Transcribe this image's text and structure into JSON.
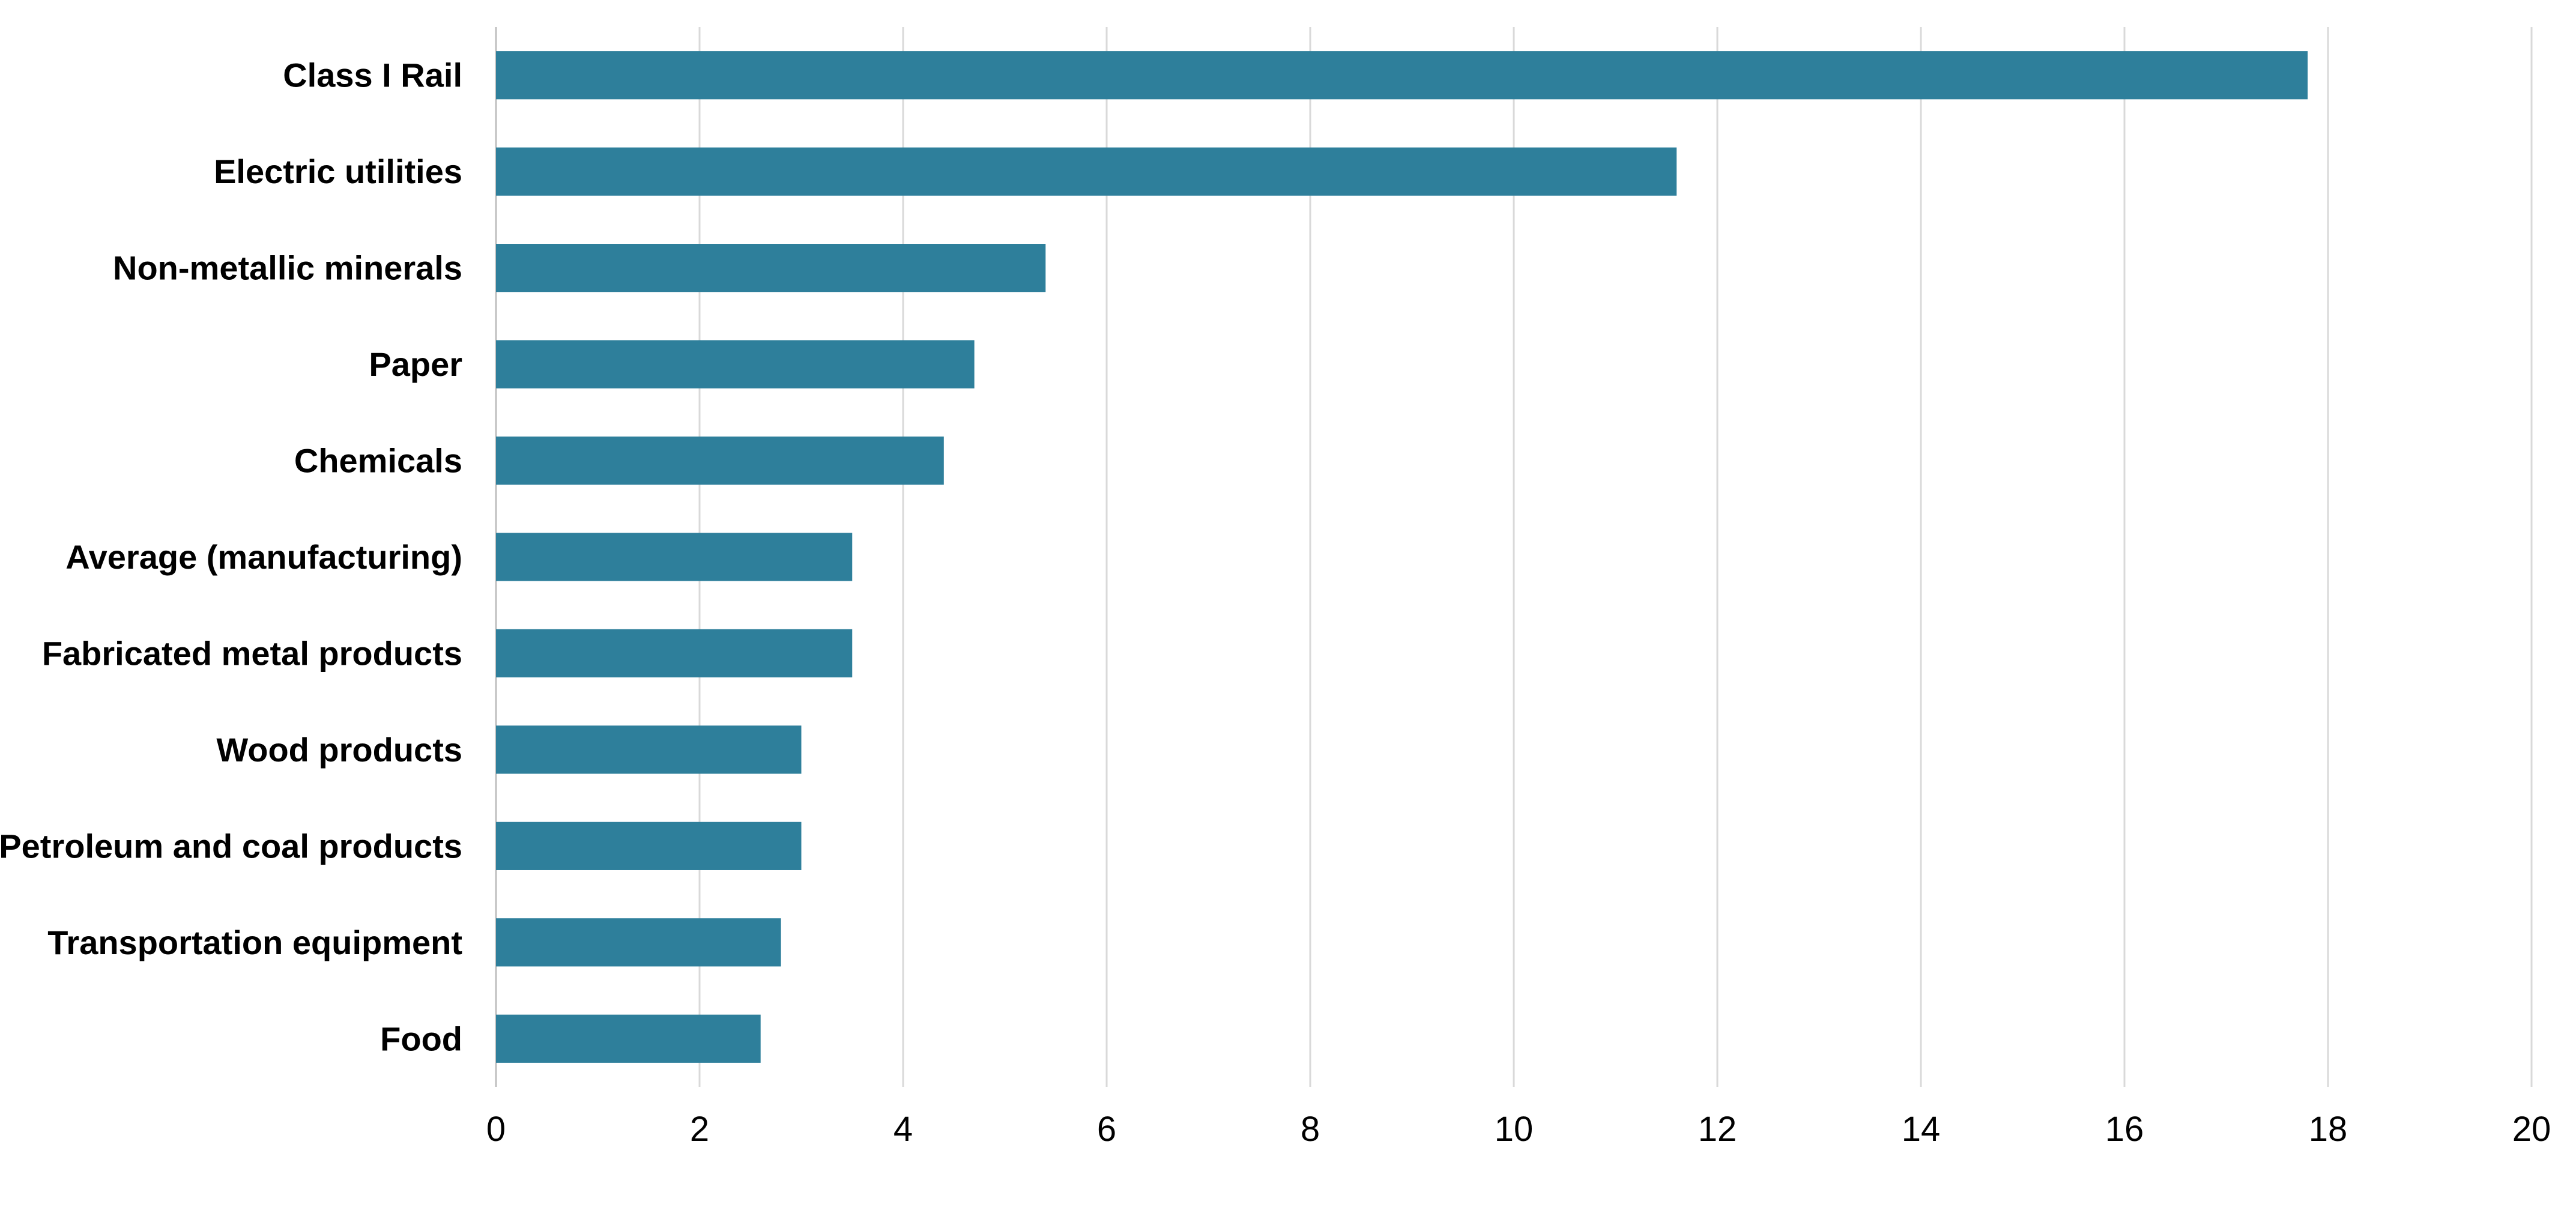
{
  "chart_data": {
    "type": "bar",
    "orientation": "horizontal",
    "categories": [
      "Class I Rail",
      "Electric utilities",
      "Non-metallic minerals",
      "Paper",
      "Chemicals",
      "Average (manufacturing)",
      "Fabricated metal products",
      "Wood products",
      "Petroleum and coal products",
      "Transportation equipment",
      "Food"
    ],
    "values": [
      17.8,
      11.6,
      5.4,
      4.7,
      4.4,
      3.5,
      3.5,
      3.0,
      3.0,
      2.8,
      2.6
    ],
    "xlim": [
      0,
      20
    ],
    "xticks": [
      0,
      2,
      4,
      6,
      8,
      10,
      12,
      14,
      16,
      18,
      20
    ],
    "grid": "vertical",
    "legend": "none",
    "bar_color": "#2e7f9b"
  }
}
